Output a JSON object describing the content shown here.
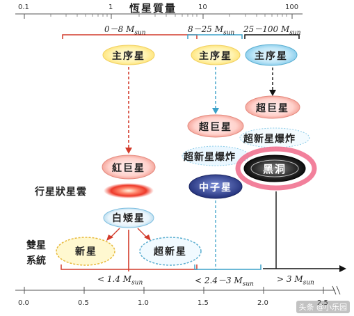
{
  "top_axis": {
    "title": "恆星質量",
    "ticks": [
      "0.1",
      "1",
      "10",
      "100"
    ]
  },
  "mass_ranges": {
    "low": "0－8 M",
    "mid": "8－25 M",
    "high": "25－100 M",
    "sub": "sun"
  },
  "nodes": {
    "main_seq_low": "主序星",
    "main_seq_mid": "主序星",
    "main_seq_high": "主序星",
    "red_giant": "紅巨星",
    "supergiant_mid": "超巨星",
    "supergiant_high": "超巨星",
    "supernova_mid": "超新星爆炸",
    "supernova_high": "超新星爆炸",
    "planetary_nebula": "行星狀星雲",
    "white_dwarf": "白矮星",
    "neutron_star": "中子星",
    "black_hole": "黑洞",
    "nova": "新星",
    "supernova_small": "超新星",
    "binary_system": "雙星系統"
  },
  "bottom_ranges": {
    "a": "< 1.4 M",
    "b": "< 2.4－3 M",
    "c": "> 3 M",
    "sub": "sun"
  },
  "bottom_axis": {
    "ticks": [
      "0.0",
      "0.5",
      "1.0",
      "1.5",
      "2.0",
      "2.5"
    ]
  },
  "watermark": "头条 @小乐园",
  "colors": {
    "red": "#d23a2a",
    "blue": "#3aa0c8",
    "black": "#111111",
    "yellow_glow": "#fff2a8",
    "pink_ring": "#f06a8a"
  }
}
